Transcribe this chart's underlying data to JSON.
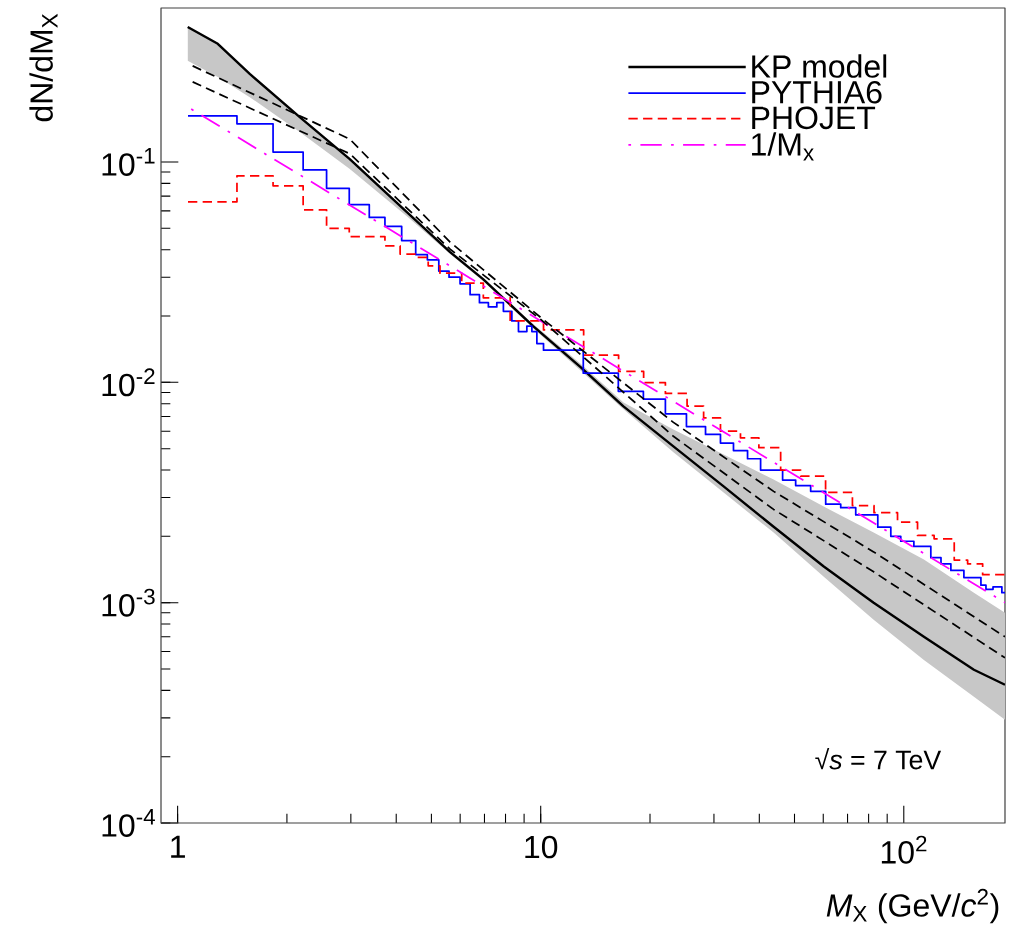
{
  "chart_data": {
    "type": "line",
    "xlabel": "*M*$_{X}$ (GeV/*c*$^{2}$)",
    "ylabel": "dN/dM$_{X}$",
    "log": "xy",
    "xlim": [
      0.9,
      190
    ],
    "ylim": [
      0.0001,
      0.5
    ],
    "xticks": [
      1,
      10,
      {
        "value": 100,
        "label": "10$^{2}$"
      }
    ],
    "yticks": [
      {
        "value": 0.0001,
        "label": "10$^{-4}$"
      },
      {
        "value": 0.001,
        "label": "10$^{-3}$"
      },
      {
        "value": 0.01,
        "label": "10$^{-2}$"
      },
      {
        "value": 0.1,
        "label": "10$^{-1}$"
      }
    ],
    "legend": "top right",
    "annotations": [
      "√*s* = 7 TeV"
    ],
    "series": [
      {
        "name": "KP model",
        "type": "line",
        "color": "#000000",
        "line_style": "solid",
        "x": [
          1.066,
          1.29,
          1.58,
          2.17,
          2.98,
          4.28,
          5.63,
          6.94,
          9.53,
          12.9,
          16.9,
          23.2,
          31.9,
          43.8,
          60.2,
          82.6,
          113.6,
          156,
          190
        ],
        "values": [
          0.41,
          0.344,
          0.251,
          0.16,
          0.103,
          0.0593,
          0.039,
          0.0294,
          0.018,
          0.0117,
          0.00778,
          0.00512,
          0.00337,
          0.00221,
          0.00146,
          0.001,
          0.0007,
          0.000496,
          0.000424
        ],
        "upper": [
          0.41,
          0.344,
          0.251,
          0.16,
          0.103,
          0.0593,
          0.039,
          0.0294,
          0.0184,
          0.0121,
          0.00811,
          0.00611,
          0.00471,
          0.00362,
          0.00273,
          0.00208,
          0.00157,
          0.00111,
          0.0009
        ],
        "lower": [
          0.288,
          0.243,
          0.197,
          0.137,
          0.0929,
          0.0568,
          0.0382,
          0.0288,
          0.0176,
          0.0113,
          0.00754,
          0.00481,
          0.00316,
          0.00208,
          0.00131,
          0.000837,
          0.00055,
          0.000374,
          0.000294
        ]
      },
      {
        "name": "PYTHIA6",
        "type": "step",
        "color": "#0000ff",
        "line_style": "solid",
        "x": [
          1.068,
          1.457,
          1.832,
          2.217,
          2.572,
          2.97,
          3.372,
          3.724,
          4.141,
          4.526,
          4.873,
          5.24,
          5.592,
          5.997,
          6.391,
          6.781,
          7.178,
          7.571,
          7.895,
          8.328,
          8.685,
          9.159,
          9.456,
          9.76,
          10.18,
          13.1,
          16.36,
          19.18,
          22.05,
          25.2,
          28.44,
          31.27,
          33.96,
          37.13,
          40.33,
          46.37,
          50.37,
          55.4,
          60.94,
          67.04,
          73.74,
          84.8,
          92.1,
          98.1,
          106.6,
          118.7,
          126.6,
          134.8,
          146.4,
          163.1,
          168.4,
          176.1,
          186.3,
          190
        ],
        "values": [
          0.162,
          0.149,
          0.111,
          0.092,
          0.076,
          0.064,
          0.056,
          0.051,
          0.044,
          0.038,
          0.036,
          0.032,
          0.03,
          0.028,
          0.025,
          0.023,
          0.022,
          0.023,
          0.021,
          0.019,
          0.017,
          0.018,
          0.017,
          0.015,
          0.014,
          0.011,
          0.0091,
          0.0084,
          0.0072,
          0.0063,
          0.0058,
          0.0053,
          0.0049,
          0.0045,
          0.004,
          0.0036,
          0.0034,
          0.0032,
          0.0028,
          0.0027,
          0.0025,
          0.0022,
          0.002,
          0.0019,
          0.0018,
          0.0016,
          0.0015,
          0.0014,
          0.0013,
          0.0012,
          0.00115,
          0.00118,
          0.00111,
          0.00111
        ]
      },
      {
        "name": "PHOJET",
        "type": "step",
        "color": "#ff0000",
        "line_style": "dashed",
        "x": [
          1.068,
          1.457,
          1.832,
          2.217,
          2.572,
          2.97,
          3.724,
          4.1,
          4.51,
          4.9,
          5.28,
          6.06,
          6.95,
          8.24,
          10.18,
          13.13,
          16.39,
          19.21,
          22.05,
          25.3,
          28.1,
          31.27,
          35.5,
          39.9,
          45.8,
          52.0,
          60.9,
          72.2,
          82.8,
          96.1,
          109.1,
          121.2,
          137.7,
          149.9,
          164.9,
          190
        ],
        "values": [
          0.066,
          0.0866,
          0.078,
          0.0607,
          0.05,
          0.0459,
          0.0416,
          0.0382,
          0.0369,
          0.0338,
          0.0313,
          0.0282,
          0.0242,
          0.019,
          0.0173,
          0.0133,
          0.0112,
          0.00997,
          0.0089,
          0.0078,
          0.0069,
          0.006,
          0.0056,
          0.00505,
          0.004,
          0.00375,
          0.00317,
          0.00276,
          0.00256,
          0.00232,
          0.00202,
          0.00195,
          0.00156,
          0.0015,
          0.00134,
          0.00134
        ]
      },
      {
        "name": "1/M$_{x}$",
        "color": "#ff00ff",
        "line_style": "dashdot",
        "x": [
          1.09,
          10,
          190
        ],
        "values": [
          0.174,
          0.019,
          0.001
        ]
      },
      {
        "color": "#000000",
        "line_style": "dashed",
        "x": [
          1.1,
          2.98,
          5.63,
          10,
          23.2,
          43.8,
          82.6,
          190
        ],
        "values": [
          0.273,
          0.127,
          0.0433,
          0.0197,
          0.00658,
          0.0032,
          0.0017,
          0.0007
        ]
      },
      {
        "color": "#000000",
        "line_style": "dashed",
        "x": [
          1.1,
          2.98,
          5.63,
          10,
          23.2,
          43.8,
          82.6,
          190
        ],
        "values": [
          0.231,
          0.109,
          0.0402,
          0.0193,
          0.00569,
          0.00265,
          0.00138,
          0.000562
        ]
      }
    ]
  }
}
